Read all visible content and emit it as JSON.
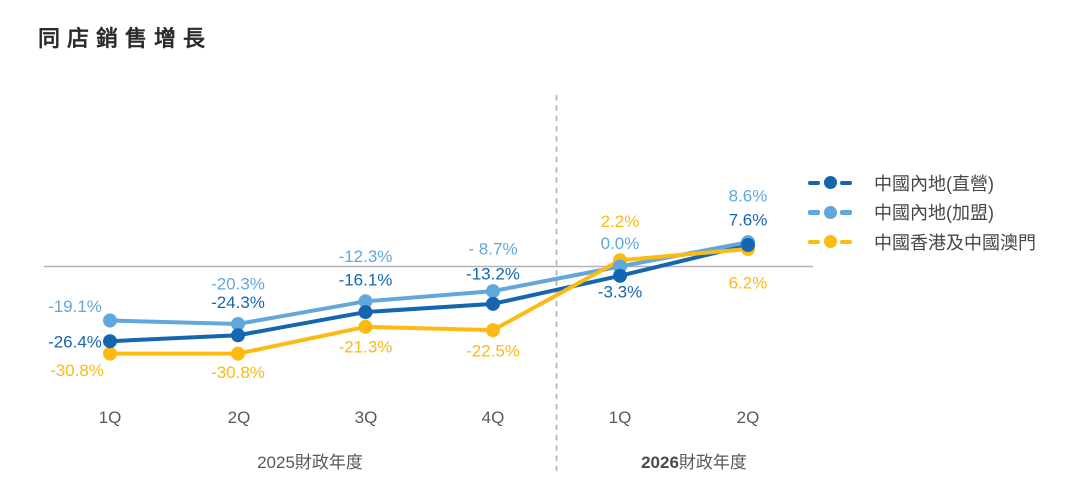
{
  "title": "同店銷售增長",
  "chart_data": {
    "type": "line",
    "title": "同店銷售增長",
    "unit": "%",
    "categories": [
      "1Q",
      "2Q",
      "3Q",
      "4Q",
      "1Q",
      "2Q"
    ],
    "x_groups": [
      {
        "year": "2025",
        "suffix": "財政年度",
        "bold_year": false,
        "category_span": [
          0,
          3
        ]
      },
      {
        "year": "2026",
        "suffix": "財政年度",
        "bold_year": true,
        "category_span": [
          4,
          5
        ]
      }
    ],
    "series": [
      {
        "name": "中國內地(直營)",
        "color": "#1566b0",
        "values": [
          -26.4,
          -24.3,
          -16.1,
          -13.2,
          -3.3,
          7.6
        ],
        "labels": [
          "-26.4%",
          "-24.3%",
          "-16.1%",
          "-13.2%",
          "-3.3%",
          "7.6%"
        ]
      },
      {
        "name": "中國內地(加盟)",
        "color": "#61a7db",
        "values": [
          -19.1,
          -20.3,
          -12.3,
          -8.7,
          0.0,
          8.6
        ],
        "labels": [
          "-19.1%",
          "-20.3%",
          "-12.3%",
          "- 8.7%",
          "0.0%",
          "8.6%"
        ]
      },
      {
        "name": "中國香港及中國澳門",
        "color": "#fcba12",
        "values": [
          -30.8,
          -30.8,
          -21.3,
          -22.5,
          2.2,
          6.2
        ],
        "labels": [
          "-30.8%",
          "-30.8%",
          "-21.3%",
          "-22.5%",
          "2.2%",
          "6.2%"
        ]
      }
    ],
    "zero_line": true,
    "divider_between_categories": [
      3,
      4
    ],
    "legend_position": "right",
    "grid": false,
    "ylim": [
      -35,
      12
    ]
  },
  "colors": {
    "zero_line": "#b3b3b3",
    "divider": "#b0b0b0",
    "axis_text": "#58595b",
    "title_text": "#2b2b2b",
    "legend_text": "#464646",
    "background": "#ffffff"
  }
}
